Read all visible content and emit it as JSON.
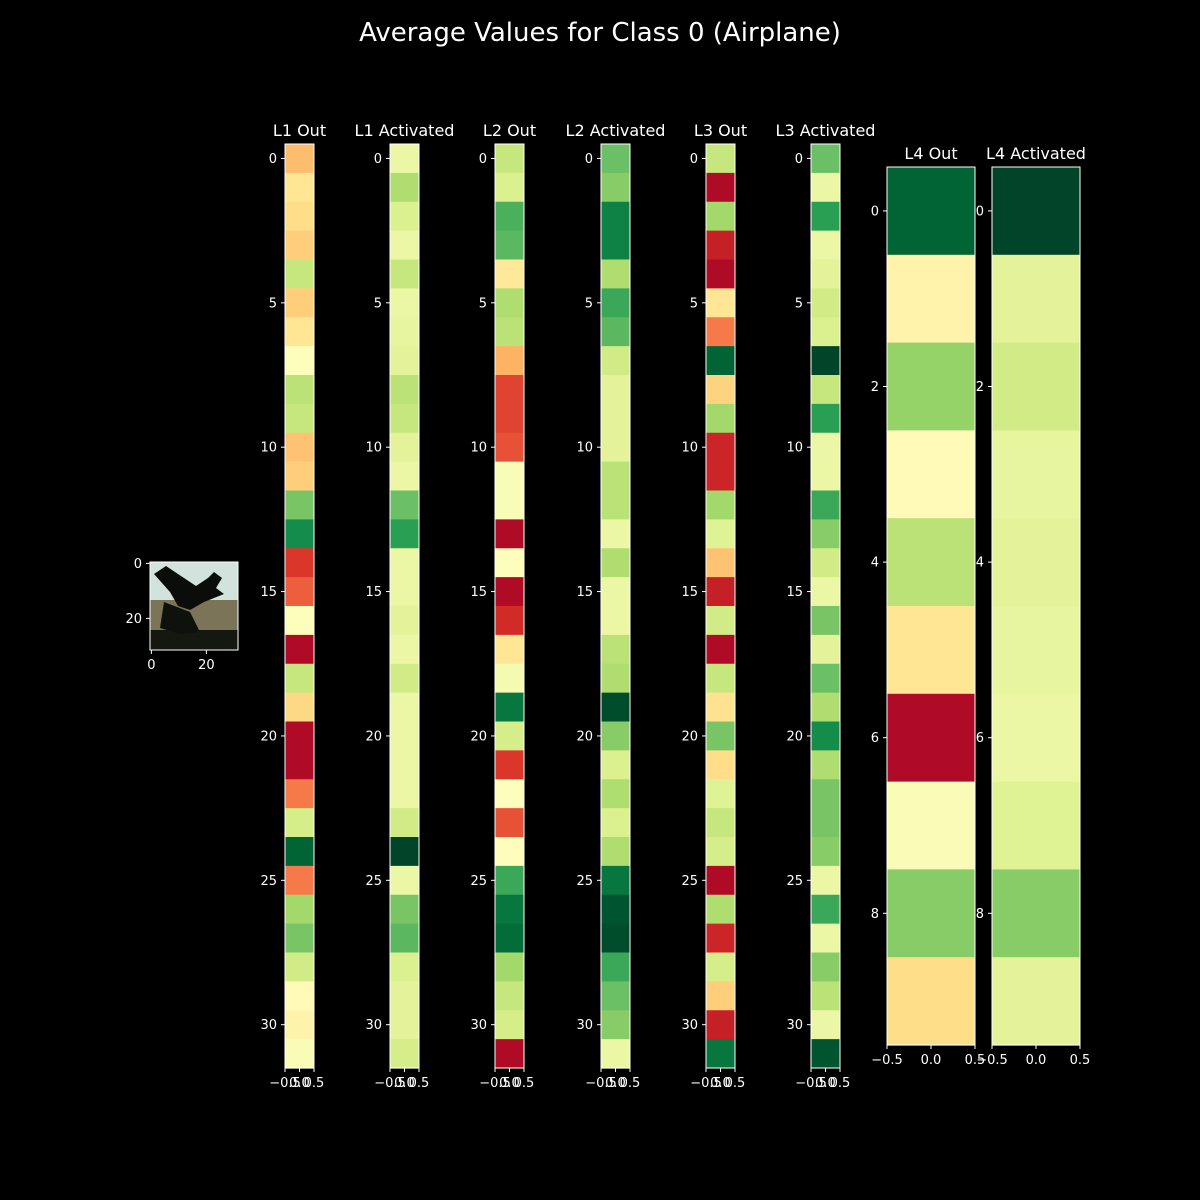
{
  "title": "Average Values for Class 0 (Airplane)",
  "colormap": "RdYlGn",
  "colors": {
    "background": "#000000",
    "text": "#ffffff",
    "axis": "#ffffff",
    "cmap_stops": [
      "#a50026",
      "#d73027",
      "#f46d43",
      "#fdae61",
      "#fee08b",
      "#ffffbf",
      "#d9ef8b",
      "#a6d96a",
      "#66bd63",
      "#1a9850",
      "#006837",
      "#004529"
    ]
  },
  "input_image": {
    "description_icon": "airplane-thumbnail-icon",
    "x_ticks": [
      "0",
      "20"
    ],
    "y_ticks": [
      "0",
      "20"
    ]
  },
  "chart_data": [
    {
      "type": "heatmap",
      "title": "L1 Out",
      "x_ticks": [
        "−0.5",
        "0.0",
        "0.5"
      ],
      "y_ticks": [
        "0",
        "5",
        "10",
        "15",
        "20",
        "25",
        "30"
      ],
      "values": [
        0.3,
        0.38,
        0.36,
        0.33,
        0.58,
        0.33,
        0.38,
        0.46,
        0.6,
        0.58,
        0.31,
        0.33,
        0.7,
        0.84,
        0.1,
        0.16,
        0.46,
        0.02,
        0.58,
        0.35,
        0.02,
        0.02,
        0.2,
        0.55,
        0.92,
        0.2,
        0.64,
        0.7,
        0.56,
        0.44,
        0.42,
        0.47
      ]
    },
    {
      "type": "heatmap",
      "title": "L1 Activated",
      "x_ticks": [
        "−0.5",
        "0.0",
        "0.5"
      ],
      "y_ticks": [
        "0",
        "5",
        "10",
        "15",
        "20",
        "25",
        "30"
      ],
      "values": [
        0.5,
        0.62,
        0.54,
        0.5,
        0.58,
        0.5,
        0.51,
        0.52,
        0.6,
        0.58,
        0.52,
        0.5,
        0.72,
        0.8,
        0.5,
        0.5,
        0.52,
        0.5,
        0.56,
        0.5,
        0.5,
        0.5,
        0.5,
        0.56,
        1.0,
        0.5,
        0.7,
        0.74,
        0.54,
        0.52,
        0.52,
        0.55
      ]
    },
    {
      "type": "heatmap",
      "title": "L2 Out",
      "x_ticks": [
        "−0.5",
        "0.0",
        "0.5"
      ],
      "y_ticks": [
        "0",
        "5",
        "10",
        "15",
        "20",
        "25",
        "30"
      ],
      "values": [
        0.58,
        0.54,
        0.76,
        0.74,
        0.39,
        0.62,
        0.6,
        0.28,
        0.12,
        0.12,
        0.14,
        0.47,
        0.47,
        0.02,
        0.46,
        0.02,
        0.08,
        0.38,
        0.48,
        0.88,
        0.55,
        0.1,
        0.46,
        0.14,
        0.45,
        0.78,
        0.88,
        0.9,
        0.64,
        0.58,
        0.55,
        0.02
      ]
    },
    {
      "type": "heatmap",
      "title": "L2 Activated",
      "x_ticks": [
        "−0.5",
        "0.0",
        "0.5"
      ],
      "y_ticks": [
        "0",
        "5",
        "10",
        "15",
        "20",
        "25",
        "30"
      ],
      "values": [
        0.72,
        0.68,
        0.86,
        0.86,
        0.62,
        0.78,
        0.74,
        0.56,
        0.52,
        0.52,
        0.52,
        0.6,
        0.6,
        0.5,
        0.62,
        0.5,
        0.5,
        0.6,
        0.62,
        0.98,
        0.68,
        0.54,
        0.62,
        0.54,
        0.62,
        0.88,
        0.96,
        0.98,
        0.78,
        0.72,
        0.68,
        0.5
      ]
    },
    {
      "type": "heatmap",
      "title": "L3 Out",
      "x_ticks": [
        "−0.5",
        "0.0",
        "0.5"
      ],
      "y_ticks": [
        "0",
        "5",
        "10",
        "15",
        "20",
        "25",
        "30"
      ],
      "values": [
        0.58,
        0.02,
        0.64,
        0.06,
        0.02,
        0.38,
        0.2,
        0.92,
        0.34,
        0.64,
        0.07,
        0.07,
        0.64,
        0.53,
        0.31,
        0.06,
        0.56,
        0.02,
        0.58,
        0.37,
        0.7,
        0.36,
        0.53,
        0.58,
        0.55,
        0.02,
        0.62,
        0.07,
        0.55,
        0.33,
        0.06,
        0.88
      ]
    },
    {
      "type": "heatmap",
      "title": "L3 Activated",
      "x_ticks": [
        "−0.5",
        "0.0",
        "0.5"
      ],
      "y_ticks": [
        "0",
        "5",
        "10",
        "15",
        "20",
        "25",
        "30"
      ],
      "values": [
        0.72,
        0.5,
        0.8,
        0.5,
        0.52,
        0.56,
        0.54,
        1.0,
        0.58,
        0.8,
        0.5,
        0.5,
        0.78,
        0.68,
        0.56,
        0.5,
        0.7,
        0.52,
        0.72,
        0.62,
        0.84,
        0.62,
        0.7,
        0.7,
        0.68,
        0.5,
        0.78,
        0.5,
        0.68,
        0.6,
        0.5,
        0.96
      ]
    },
    {
      "type": "heatmap",
      "title": "L4 Out",
      "x_ticks": [
        "−0.5",
        "0.0",
        "0.5"
      ],
      "y_ticks": [
        "0",
        "2",
        "4",
        "6",
        "8"
      ],
      "values": [
        0.92,
        0.42,
        0.66,
        0.44,
        0.6,
        0.38,
        0.02,
        0.47,
        0.68,
        0.36
      ]
    },
    {
      "type": "heatmap",
      "title": "L4 Activated",
      "x_ticks": [
        "−0.5",
        "0.0",
        "0.5"
      ],
      "y_ticks": [
        "0",
        "2",
        "4",
        "6",
        "8"
      ],
      "values": [
        1.0,
        0.52,
        0.56,
        0.51,
        0.52,
        0.51,
        0.5,
        0.53,
        0.68,
        0.52
      ]
    }
  ]
}
